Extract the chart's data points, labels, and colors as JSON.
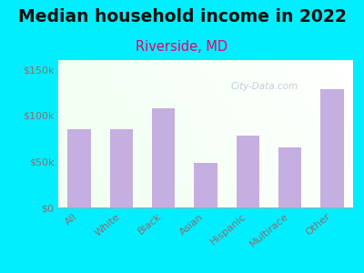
{
  "title": "Median household income in 2022",
  "subtitle": "Riverside, MD",
  "categories": [
    "All",
    "White",
    "Black",
    "Asian",
    "Hispanic",
    "Multirace",
    "Other"
  ],
  "values": [
    85000,
    85000,
    108000,
    48000,
    78000,
    65000,
    128000
  ],
  "bar_color": "#c5aee0",
  "title_fontsize": 13.5,
  "title_color": "#111111",
  "subtitle_fontsize": 10.5,
  "subtitle_color": "#e8006a",
  "tick_label_color": "#8a7070",
  "background_color": "#00eeff",
  "plot_bg_color_tl": "#d8eed8",
  "plot_bg_color_tr": "#f0f8f0",
  "plot_bg_color_br": "#ffffff",
  "ylim": [
    0,
    160000
  ],
  "yticks": [
    0,
    50000,
    100000,
    150000
  ],
  "ytick_labels": [
    "$0",
    "$50k",
    "$100k",
    "$150k"
  ],
  "watermark": "City-Data.com",
  "watermark_color": "#b8c8d4",
  "bottom_border_color": "#aaaaaa"
}
